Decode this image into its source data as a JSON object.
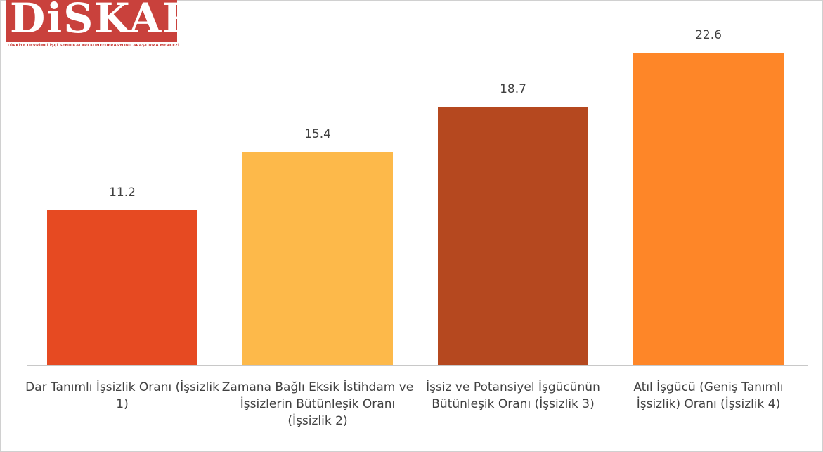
{
  "logo": {
    "name": "DiSKAR",
    "tagline": "TÜRKİYE DEVRİMCİ İŞÇİ SENDİKALARI KONFEDERASYONU ARAŞTIRMA MERKEZİ"
  },
  "chart_data": {
    "type": "bar",
    "categories": [
      "Dar Tanımlı İşsizlik Oranı (İşsizlik 1)",
      "Zamana Bağlı Eksik İstihdam ve İşsizlerin Bütünleşik Oranı (İşsizlik 2)",
      "İşsiz ve Potansiyel İşgücünün Bütünleşik Oranı (İşsizlik 3)",
      "Atıl İşgücü (Geniş Tanımlı İşsizlik) Oranı (İşsizlik 4)"
    ],
    "values": [
      11.2,
      15.4,
      18.7,
      22.6
    ],
    "colors": [
      "#e64a22",
      "#fdb94a",
      "#b5481f",
      "#fe8628"
    ]
  }
}
